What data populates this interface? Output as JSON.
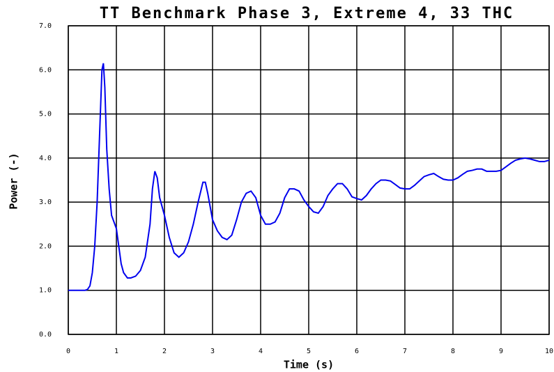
{
  "chart_data": {
    "type": "line",
    "title": "TT Benchmark Phase 3, Extreme 4, 33 THC",
    "x_label": "Time (s)",
    "y_label": "Power (-)",
    "x": [
      0,
      0.35,
      0.4,
      0.45,
      0.5,
      0.55,
      0.6,
      0.65,
      0.7,
      0.73,
      0.76,
      0.8,
      0.85,
      0.9,
      0.95,
      1.0,
      1.05,
      1.1,
      1.15,
      1.23,
      1.3,
      1.4,
      1.5,
      1.6,
      1.7,
      1.75,
      1.8,
      1.85,
      1.9,
      2.0,
      2.1,
      2.2,
      2.3,
      2.4,
      2.5,
      2.6,
      2.7,
      2.8,
      2.85,
      2.9,
      3.0,
      3.1,
      3.2,
      3.3,
      3.4,
      3.5,
      3.6,
      3.7,
      3.8,
      3.9,
      4.0,
      4.1,
      4.2,
      4.3,
      4.4,
      4.5,
      4.6,
      4.7,
      4.8,
      4.9,
      5.0,
      5.1,
      5.2,
      5.3,
      5.4,
      5.5,
      5.6,
      5.7,
      5.8,
      5.9,
      6.0,
      6.1,
      6.2,
      6.3,
      6.4,
      6.5,
      6.6,
      6.7,
      6.8,
      6.9,
      7.0,
      7.1,
      7.2,
      7.3,
      7.4,
      7.5,
      7.6,
      7.7,
      7.8,
      7.9,
      8.0,
      8.1,
      8.2,
      8.3,
      8.4,
      8.5,
      8.6,
      8.7,
      8.8,
      8.9,
      9.0,
      9.1,
      9.2,
      9.3,
      9.4,
      9.5,
      9.6,
      9.7,
      9.8,
      9.9,
      10.0
    ],
    "series": [
      {
        "name": "Power",
        "color": "#0000ee",
        "values": [
          1.0,
          1.0,
          1.02,
          1.1,
          1.4,
          2.0,
          3.0,
          4.5,
          6.0,
          6.15,
          5.6,
          4.2,
          3.3,
          2.7,
          2.55,
          2.4,
          2.0,
          1.6,
          1.4,
          1.28,
          1.28,
          1.32,
          1.45,
          1.75,
          2.5,
          3.3,
          3.7,
          3.55,
          3.1,
          2.7,
          2.2,
          1.85,
          1.75,
          1.85,
          2.1,
          2.5,
          3.0,
          3.45,
          3.45,
          3.2,
          2.6,
          2.35,
          2.2,
          2.15,
          2.25,
          2.6,
          3.0,
          3.2,
          3.25,
          3.1,
          2.7,
          2.5,
          2.5,
          2.55,
          2.75,
          3.1,
          3.3,
          3.3,
          3.25,
          3.05,
          2.9,
          2.78,
          2.75,
          2.9,
          3.15,
          3.3,
          3.42,
          3.42,
          3.3,
          3.12,
          3.08,
          3.05,
          3.15,
          3.3,
          3.42,
          3.5,
          3.5,
          3.48,
          3.4,
          3.32,
          3.3,
          3.3,
          3.38,
          3.48,
          3.58,
          3.62,
          3.65,
          3.58,
          3.52,
          3.5,
          3.5,
          3.55,
          3.63,
          3.7,
          3.72,
          3.75,
          3.75,
          3.7,
          3.7,
          3.7,
          3.72,
          3.8,
          3.88,
          3.95,
          3.98,
          4.0,
          3.98,
          3.95,
          3.92,
          3.92,
          3.95
        ]
      }
    ],
    "xlim": [
      0,
      10
    ],
    "xticks": [
      0,
      1,
      2,
      3,
      4,
      5,
      6,
      7,
      8,
      9,
      10
    ],
    "ylim": [
      0,
      7
    ],
    "yticks": [
      {
        "value": 0,
        "label": "0.0"
      },
      {
        "value": 1,
        "label": "1.0"
      },
      {
        "value": 2,
        "label": "2.0"
      },
      {
        "value": 3,
        "label": "3.0"
      },
      {
        "value": 4,
        "label": "4.0"
      },
      {
        "value": 5,
        "label": "5.0"
      },
      {
        "value": 6,
        "label": "6.0"
      },
      {
        "value": 7,
        "label": "7.0"
      }
    ],
    "grid": true
  }
}
